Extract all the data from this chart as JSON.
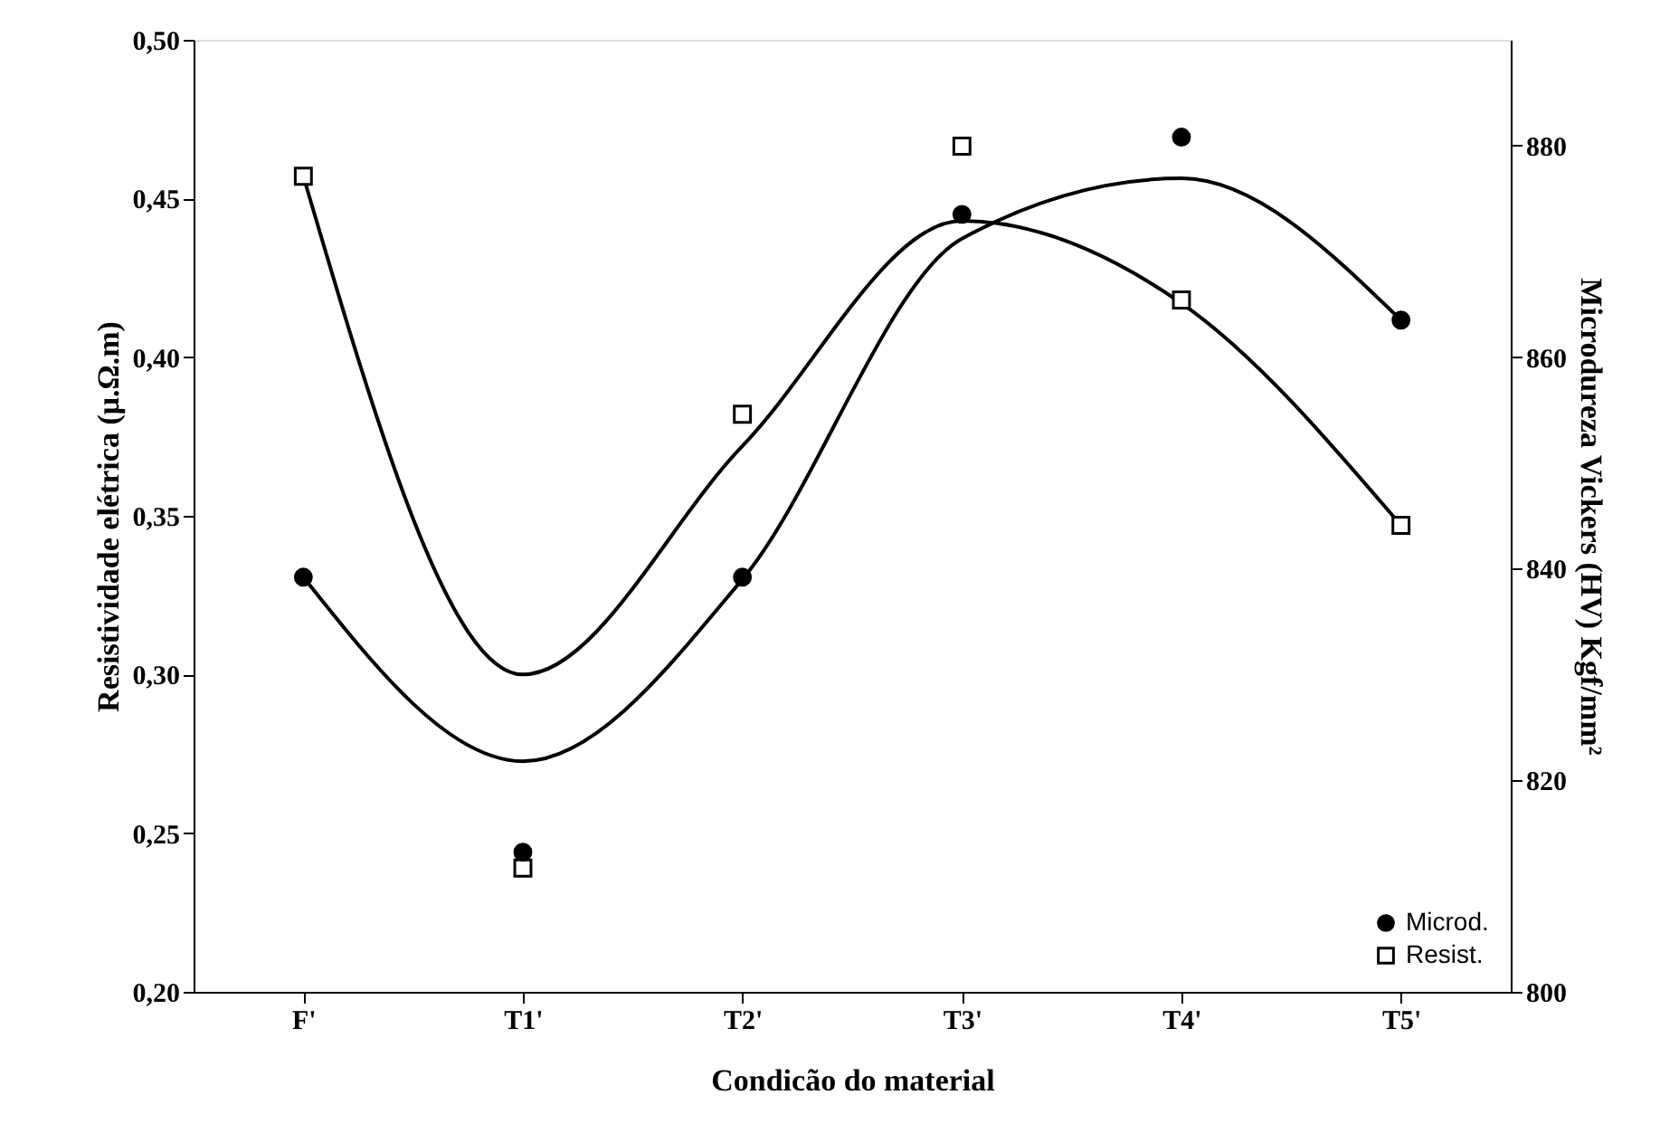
{
  "chart_data": {
    "type": "scatter",
    "xlabel": "Condicão do material",
    "ylabel": "Resistividade elétrica (μ.Ω.m)",
    "y2label": "Microdureza Vickers (HV) Kgf/mm²",
    "categories": [
      "F'",
      "T1'",
      "T2'",
      "T3'",
      "T4'",
      "T5'"
    ],
    "ylim": [
      0.2,
      0.5
    ],
    "yticks": [
      {
        "value": 0.2,
        "label": "0,20"
      },
      {
        "value": 0.25,
        "label": "0,25"
      },
      {
        "value": 0.3,
        "label": "0,30"
      },
      {
        "value": 0.35,
        "label": "0,35"
      },
      {
        "value": 0.4,
        "label": "0,40"
      },
      {
        "value": 0.45,
        "label": "0,45"
      },
      {
        "value": 0.5,
        "label": "0,50"
      }
    ],
    "y2lim": [
      800,
      890
    ],
    "y2ticks": [
      800,
      820,
      840,
      860,
      880
    ],
    "grid": false,
    "legend": "bottom right",
    "series": [
      {
        "type": "line",
        "axis": "y2",
        "color": "#000000",
        "marker": "none",
        "values": [
          839.2,
          821.8,
          839,
          871.2,
          876.9,
          863.5
        ]
      },
      {
        "type": "line",
        "color": "#000000",
        "marker": "none",
        "values": [
          0.457,
          0.3,
          0.372,
          0.443,
          0.417,
          0.347
        ]
      },
      {
        "name": "Microd.",
        "axis": "y2",
        "color": "#000000",
        "marker": "circle",
        "values": [
          839.2,
          813.2,
          839.2,
          873.5,
          880.8,
          863.5
        ]
      },
      {
        "name": "Resist.",
        "color": "#000000",
        "marker": "square",
        "values": [
          0.457,
          0.239,
          0.382,
          0.4665,
          0.418,
          0.347
        ]
      }
    ]
  }
}
